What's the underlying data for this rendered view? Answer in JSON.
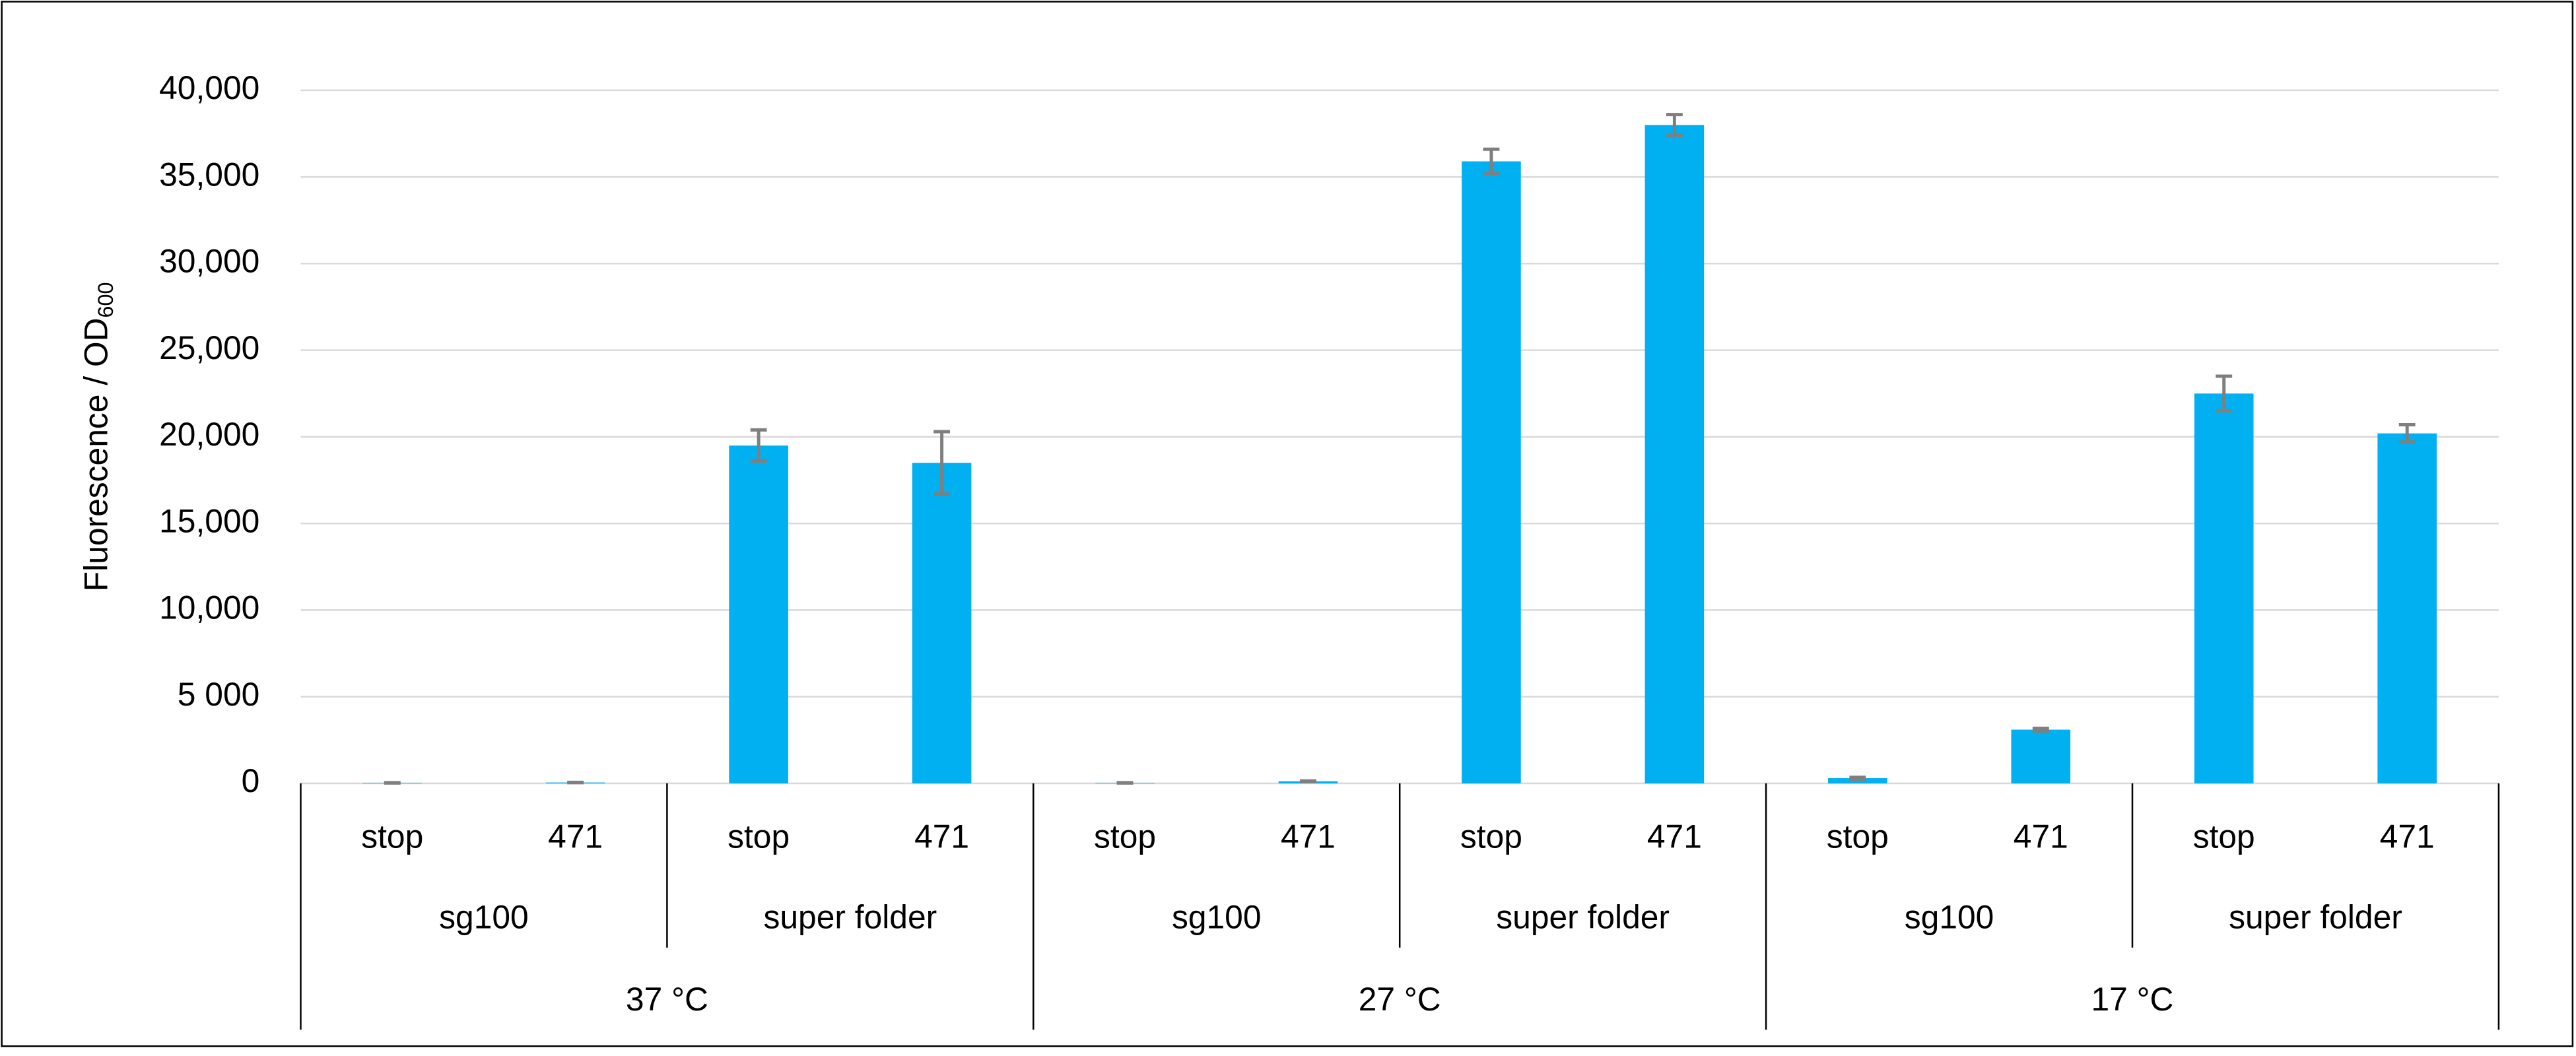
{
  "chart_data": {
    "type": "bar",
    "y_label": "Fluorescence / OD",
    "y_label_sub": "600",
    "color": "#00b0f0",
    "error_color": "#7f7f7f",
    "grid": true,
    "ylim": [
      0,
      40000
    ],
    "yticks": [
      0,
      {
        "value": 5000,
        "label": "5 000"
      },
      {
        "value": 10000,
        "label": "10,000"
      },
      {
        "value": 15000,
        "label": "15,000"
      },
      {
        "value": 20000,
        "label": "20,000"
      },
      {
        "value": 25000,
        "label": "25,000"
      },
      {
        "value": 30000,
        "label": "30,000"
      },
      {
        "value": 35000,
        "label": "35,000"
      },
      {
        "value": 40000,
        "label": "40,000"
      }
    ],
    "groups": [
      {
        "name": "37 °C",
        "groups": [
          {
            "name": "sg100",
            "categories": [
              "stop",
              "471"
            ],
            "values": [
              30,
              50
            ],
            "errors": [
              10,
              10
            ]
          },
          {
            "name": "super folder",
            "categories": [
              "stop",
              "471"
            ],
            "values": [
              19500,
              18500
            ],
            "errors": [
              900,
              1800
            ]
          }
        ]
      },
      {
        "name": "27 °C",
        "groups": [
          {
            "name": "sg100",
            "categories": [
              "stop",
              "471"
            ],
            "values": [
              30,
              120
            ],
            "errors": [
              10,
              20
            ]
          },
          {
            "name": "super folder",
            "categories": [
              "stop",
              "471"
            ],
            "values": [
              35900,
              38000
            ],
            "errors": [
              700,
              600
            ]
          }
        ]
      },
      {
        "name": "17 °C",
        "groups": [
          {
            "name": "sg100",
            "categories": [
              "stop",
              "471"
            ],
            "values": [
              300,
              3100
            ],
            "errors": [
              50,
              80
            ]
          },
          {
            "name": "super folder",
            "categories": [
              "stop",
              "471"
            ],
            "values": [
              22500,
              20200
            ],
            "errors": [
              1000,
              500
            ]
          }
        ]
      }
    ]
  }
}
